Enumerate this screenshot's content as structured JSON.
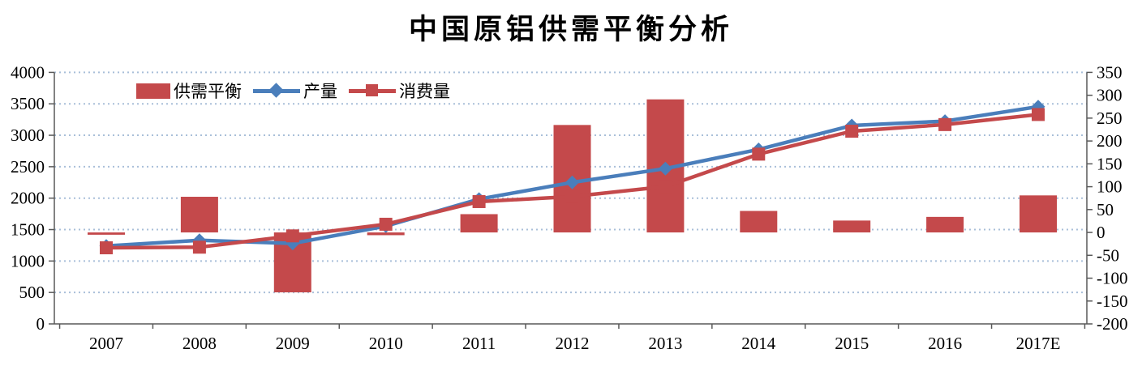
{
  "title": "中国原铝供需平衡分析",
  "colors": {
    "bar_red": "#C4494B",
    "line_blue": "#4A7EBB",
    "line_red": "#C4494B",
    "gridline": "#A9BFD9",
    "axis": "#595959",
    "text": "#000000"
  },
  "chart_data": {
    "type": "combo-bar-line",
    "title": "中国原铝供需平衡分析",
    "categories": [
      "2007",
      "2008",
      "2009",
      "2010",
      "2011",
      "2012",
      "2013",
      "2014",
      "2015",
      "2016",
      "2017E"
    ],
    "series": [
      {
        "name": "供需平衡",
        "type": "bar",
        "axis": "right",
        "color": "#C4494B",
        "values": [
          -5,
          78,
          -131,
          -6,
          40,
          235,
          291,
          47,
          26,
          34,
          81
        ]
      },
      {
        "name": "产量",
        "type": "line",
        "marker": "diamond",
        "axis": "left",
        "color": "#4A7EBB",
        "values": [
          1240,
          1330,
          1280,
          1555,
          1985,
          2250,
          2470,
          2775,
          3155,
          3225,
          3455
        ]
      },
      {
        "name": "消费量",
        "type": "line",
        "marker": "square",
        "axis": "left",
        "color": "#C4494B",
        "values": [
          1210,
          1220,
          1400,
          1585,
          1945,
          2025,
          2185,
          2700,
          3065,
          3170,
          3330
        ]
      }
    ],
    "axes": {
      "left": {
        "min": 0,
        "max": 4000,
        "step": 500
      },
      "right": {
        "min": -200,
        "max": 350,
        "step": 50
      }
    },
    "grid": "horizontal-dotted",
    "legend_position": "top-left-inside"
  }
}
